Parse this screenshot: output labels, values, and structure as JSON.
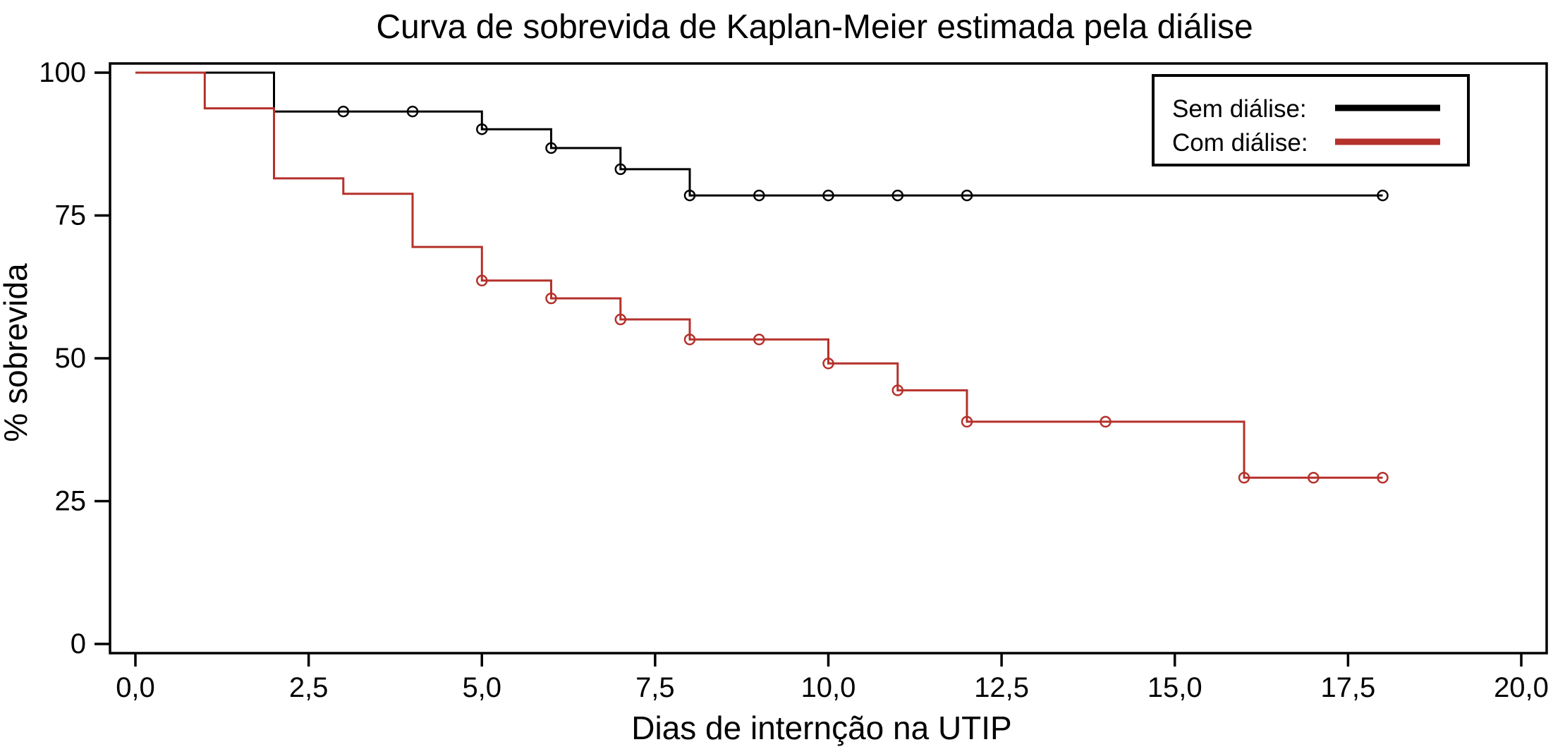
{
  "page": {
    "background_color": "#ffffff",
    "accent_black": "#000000",
    "accent_red": "#b5312b"
  },
  "chart_data": {
    "type": "line",
    "subtype": "kaplan-meier-step",
    "title": "Curva de sobrevida de Kaplan-Meier estimada pela diálise",
    "xlabel": "Dias de internção na UTIP",
    "ylabel": "% sobrevida",
    "xlim": [
      0,
      20
    ],
    "ylim": [
      0,
      100
    ],
    "grid": false,
    "legend_position": "top-right",
    "marker_style": "open-circle",
    "x_ticks": {
      "values": [
        0,
        2.5,
        5,
        7.5,
        10,
        12.5,
        15,
        17.5,
        20
      ],
      "labels": [
        "0,0",
        "2,5",
        "5,0",
        "7,5",
        "10,0",
        "12,5",
        "15,0",
        "17,5",
        "20,0"
      ]
    },
    "y_ticks": {
      "values": [
        100,
        75,
        50,
        25,
        0
      ],
      "labels": [
        "100",
        "75",
        "50",
        "25",
        "0"
      ]
    },
    "legend": [
      {
        "id": "sem-dialise",
        "label": "Sem diálise:",
        "color": "#000000"
      },
      {
        "id": "com-dialise",
        "label": "Com diálise:",
        "color": "#b5312b"
      }
    ],
    "series": [
      {
        "id": "sem-dialise",
        "name": "Sem diálise",
        "color": "#000000",
        "steps": [
          [
            0,
            100
          ],
          [
            2,
            100
          ],
          [
            2,
            93.2
          ],
          [
            5,
            93.2
          ],
          [
            5,
            90.1
          ],
          [
            6,
            90.1
          ],
          [
            6,
            86.8
          ],
          [
            7,
            86.8
          ],
          [
            7,
            83.1
          ],
          [
            8,
            83.1
          ],
          [
            8,
            78.5
          ],
          [
            18,
            78.5
          ]
        ],
        "censor_marks": [
          [
            3,
            93.2
          ],
          [
            4,
            93.2
          ],
          [
            5,
            90.1
          ],
          [
            6,
            86.8
          ],
          [
            7,
            83.1
          ],
          [
            8,
            78.5
          ],
          [
            9,
            78.5
          ],
          [
            10,
            78.5
          ],
          [
            11,
            78.5
          ],
          [
            12,
            78.5
          ],
          [
            18,
            78.5
          ]
        ]
      },
      {
        "id": "com-dialise",
        "name": "Com diálise",
        "color": "#b5312b",
        "steps": [
          [
            0,
            100
          ],
          [
            1,
            100
          ],
          [
            1,
            93.75
          ],
          [
            2,
            93.75
          ],
          [
            2,
            81.5
          ],
          [
            3,
            81.5
          ],
          [
            3,
            78.8
          ],
          [
            4,
            78.8
          ],
          [
            4,
            69.5
          ],
          [
            5,
            69.5
          ],
          [
            5,
            63.6
          ],
          [
            6,
            63.6
          ],
          [
            6,
            60.5
          ],
          [
            7,
            60.5
          ],
          [
            7,
            56.8
          ],
          [
            8,
            56.8
          ],
          [
            8,
            53.3
          ],
          [
            10,
            53.3
          ],
          [
            10,
            49.1
          ],
          [
            11,
            49.1
          ],
          [
            11,
            44.4
          ],
          [
            12,
            44.4
          ],
          [
            12,
            38.9
          ],
          [
            16,
            38.9
          ],
          [
            16,
            29.1
          ],
          [
            18,
            29.1
          ]
        ],
        "censor_marks": [
          [
            5,
            63.6
          ],
          [
            6,
            60.5
          ],
          [
            7,
            56.8
          ],
          [
            8,
            53.3
          ],
          [
            9,
            53.3
          ],
          [
            10,
            49.1
          ],
          [
            11,
            44.4
          ],
          [
            12,
            38.9
          ],
          [
            14,
            38.9
          ],
          [
            16,
            29.1
          ],
          [
            17,
            29.1
          ],
          [
            18,
            29.1
          ]
        ]
      }
    ]
  }
}
